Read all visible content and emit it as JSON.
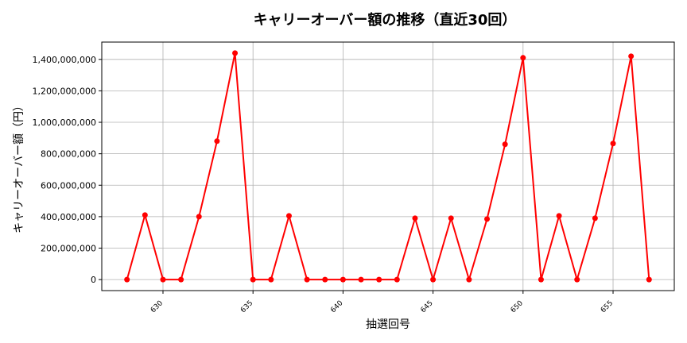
{
  "chart_data": {
    "type": "line",
    "title": "キャリーオーバー額の推移（直近30回）",
    "xlabel": "抽選回号",
    "ylabel": "キャリーオーバー額（円）",
    "xlim": [
      626.6,
      658.4
    ],
    "ylim": [
      -70000000,
      1510000000
    ],
    "xticks": [
      630,
      635,
      640,
      645,
      650,
      655
    ],
    "yticks": [
      0,
      200000000,
      400000000,
      600000000,
      800000000,
      1000000000,
      1200000000,
      1400000000
    ],
    "ytick_labels": [
      "0",
      "200,000,000",
      "400,000,000",
      "600,000,000",
      "800,000,000",
      "1,000,000,000",
      "1,200,000,000",
      "1,400,000,000"
    ],
    "grid": true,
    "color": "#ff0000",
    "series": [
      {
        "x": [
          628,
          629,
          630,
          631,
          632,
          633,
          634,
          635,
          636,
          637,
          638,
          639,
          640,
          641,
          642,
          643,
          644,
          645,
          646,
          647,
          648,
          649,
          650,
          651,
          652,
          653,
          654,
          655,
          656,
          657
        ],
        "values": [
          0,
          410000000,
          0,
          0,
          400000000,
          880000000,
          1440000000,
          0,
          0,
          405000000,
          0,
          0,
          0,
          0,
          0,
          0,
          390000000,
          0,
          390000000,
          0,
          385000000,
          860000000,
          1410000000,
          0,
          405000000,
          0,
          390000000,
          865000000,
          1420000000,
          0
        ]
      }
    ]
  }
}
